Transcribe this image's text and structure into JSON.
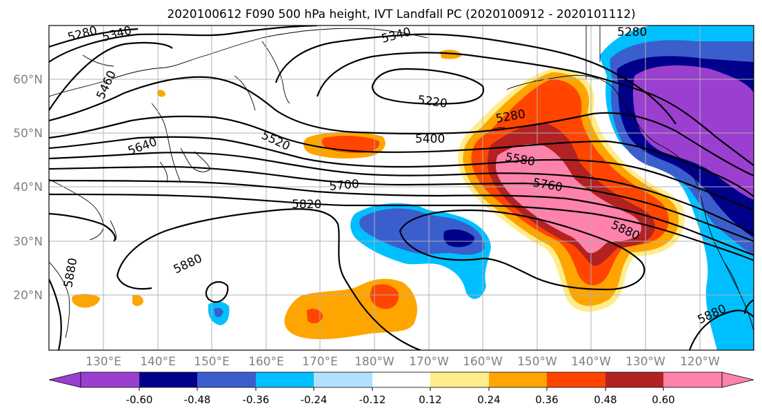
{
  "title": "2020100612 F090 500 hPa height, IVT Landfall PC (2020100912 - 2020101112)",
  "lat_labels": [
    "60°N",
    "50°N",
    "40°N",
    "30°N",
    "20°N"
  ],
  "lon_labels": [
    "130°E",
    "140°E",
    "150°E",
    "160°E",
    "170°E",
    "180°W",
    "170°W",
    "160°W",
    "150°W",
    "140°W",
    "130°W",
    "120°W"
  ],
  "contour_labels": [
    "5280",
    "5340",
    "5340",
    "5280",
    "5460",
    "5220",
    "5280",
    "5520",
    "5400",
    "5640",
    "5580",
    "5760",
    "5700",
    "5820",
    "5880",
    "5880",
    "5880",
    "5880"
  ],
  "colorbar": {
    "colors": [
      "#9b3fd0",
      "#00008b",
      "#3a5fcd",
      "#00bfff",
      "#b0e2ff",
      "#ffffff",
      "#ffec8b",
      "#ffa500",
      "#ff4500",
      "#b22222",
      "#ff82ab"
    ],
    "tick_labels": [
      "-0.60",
      "-0.48",
      "-0.36",
      "-0.24",
      "-0.12",
      "0.12",
      "0.24",
      "0.36",
      "0.48",
      "0.60"
    ]
  }
}
